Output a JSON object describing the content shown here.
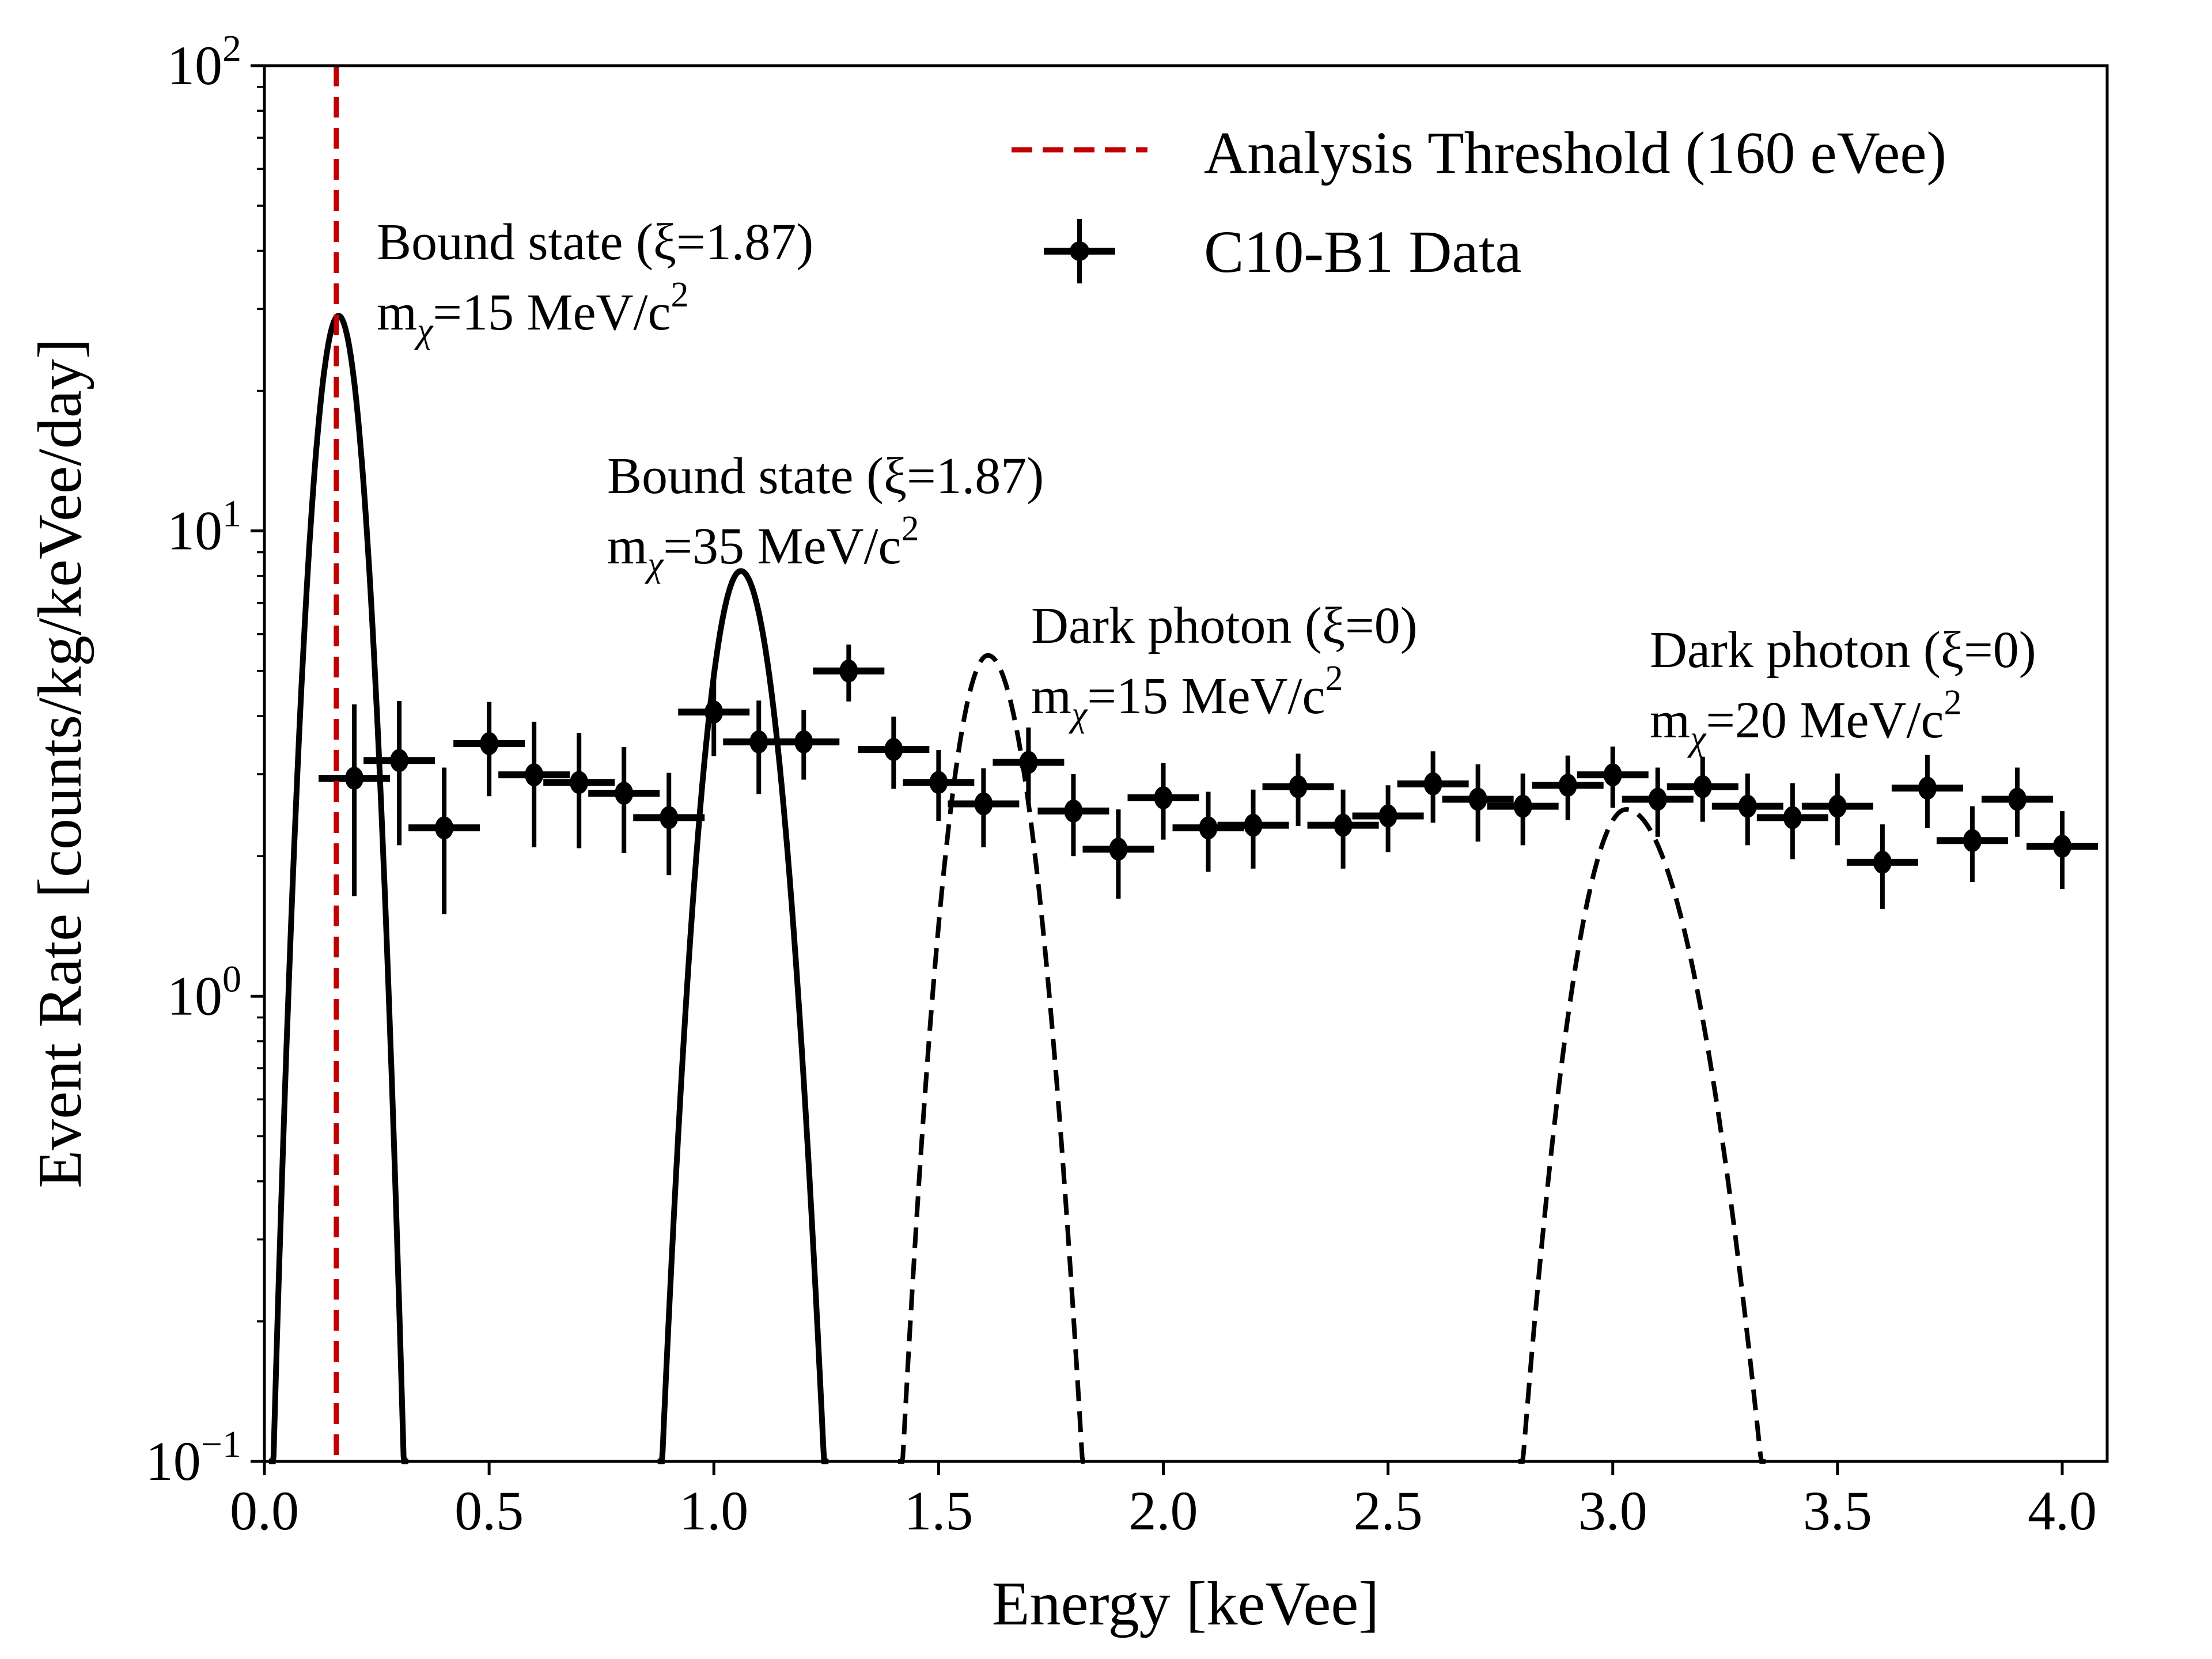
{
  "chart_data": {
    "type": "scatter",
    "xlabel": "Energy [keVee]",
    "ylabel": "Event Rate [counts/kg/keVee/day]",
    "xlim": [
      0.0,
      4.1
    ],
    "ylim": [
      0.1,
      100
    ],
    "yscale": "log",
    "grid": false,
    "legend_placement": "top-right",
    "x_ticks": [
      "0.0",
      "0.5",
      "1.0",
      "1.5",
      "2.0",
      "2.5",
      "3.0",
      "3.5",
      "4.0"
    ],
    "y_ticks": [
      {
        "base": "10",
        "exp": "2"
      },
      {
        "base": "10",
        "exp": "1"
      },
      {
        "base": "10",
        "exp": "0"
      },
      {
        "base": "10",
        "exp": "−1"
      }
    ],
    "threshold": {
      "name": "Analysis Threshold (160 eVee)",
      "x": 0.16,
      "color": "#c00000"
    },
    "data_series": {
      "name": "C10-B1 Data",
      "color": "#000000",
      "x": [
        0.2,
        0.3,
        0.4,
        0.5,
        0.6,
        0.7,
        0.8,
        0.9,
        1.0,
        1.1,
        1.2,
        1.3,
        1.4,
        1.5,
        1.6,
        1.7,
        1.8,
        1.9,
        2.0,
        2.1,
        2.2,
        2.3,
        2.4,
        2.5,
        2.6,
        2.7,
        2.8,
        2.9,
        3.0,
        3.1,
        3.2,
        3.3,
        3.4,
        3.5,
        3.6,
        3.7,
        3.8,
        3.9,
        4.0
      ],
      "y": [
        2.94,
        3.21,
        2.3,
        3.49,
        2.99,
        2.88,
        2.73,
        2.42,
        4.08,
        3.52,
        3.52,
        5.0,
        3.39,
        2.88,
        2.59,
        3.18,
        2.5,
        2.07,
        2.67,
        2.3,
        2.33,
        2.82,
        2.33,
        2.44,
        2.86,
        2.65,
        2.56,
        2.84,
        2.99,
        2.65,
        2.82,
        2.56,
        2.42,
        2.56,
        1.94,
        2.8,
        2.16,
        2.65,
        2.1
      ],
      "yerr": [
        1.3,
        1.1,
        0.8,
        0.8,
        0.9,
        0.8,
        0.7,
        0.6,
        0.8,
        0.8,
        0.6,
        0.7,
        0.6,
        0.5,
        0.5,
        0.6,
        0.5,
        0.45,
        0.5,
        0.45,
        0.45,
        0.5,
        0.45,
        0.4,
        0.5,
        0.5,
        0.45,
        0.45,
        0.45,
        0.45,
        0.45,
        0.45,
        0.45,
        0.45,
        0.4,
        0.5,
        0.4,
        0.45,
        0.4
      ]
    },
    "model_curves": [
      {
        "label_line1": "Bound state (ξ=1.87)",
        "label_m": "m",
        "label_sub": "χ",
        "label_mass": "=15 MeV/c",
        "label_sup": "2",
        "style": "solid",
        "peak_x": 0.165,
        "peak_y": 29,
        "x_at_ymin": [
          0.02,
          0.31
        ]
      },
      {
        "label_line1": "Bound state (ξ=1.87)",
        "label_m": "m",
        "label_sub": "χ",
        "label_mass": "=35 MeV/c",
        "label_sup": "2",
        "style": "solid",
        "peak_x": 1.06,
        "peak_y": 8.2,
        "x_at_ymin": [
          0.885,
          1.245
        ]
      },
      {
        "label_line1": "Dark photon (ξ=0)",
        "label_m": "m",
        "label_sub": "χ",
        "label_mass": "=15 MeV/c",
        "label_sup": "2",
        "style": "dashed",
        "peak_x": 1.61,
        "peak_y": 5.4,
        "x_at_ymin": [
          1.42,
          1.82
        ]
      },
      {
        "label_line1": "Dark photon (ξ=0)",
        "label_m": "m",
        "label_sub": "χ",
        "label_mass": "=20 MeV/c",
        "label_sup": "2",
        "style": "dashed",
        "peak_x": 3.03,
        "peak_y": 2.52,
        "x_at_ymin": [
          2.8,
          3.33
        ]
      }
    ]
  }
}
